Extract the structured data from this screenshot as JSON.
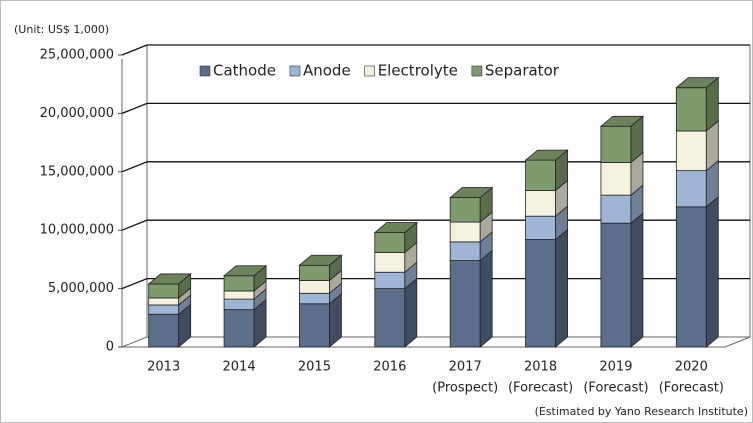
{
  "chart_data": {
    "type": "bar3d_stacked",
    "unit_note": "(Unit: US$ 1,000)",
    "source": "(Estimated by Yano Research Institute)",
    "categories": [
      "2013",
      "2014",
      "2015",
      "2016",
      "2017",
      "2018",
      "2019",
      "2020"
    ],
    "category_sublabels": [
      null,
      null,
      null,
      null,
      "(Prospect)",
      "(Forecast)",
      "(Forecast)",
      "(Forecast)"
    ],
    "series": [
      {
        "name": "Cathode",
        "color": "#5b6e8b",
        "values": [
          2800000,
          3200000,
          3700000,
          5000000,
          7400000,
          9200000,
          10600000,
          12000000
        ]
      },
      {
        "name": "Anode",
        "color": "#9fb5d6",
        "values": [
          800000,
          900000,
          900000,
          1400000,
          1600000,
          2000000,
          2400000,
          3100000
        ]
      },
      {
        "name": "Electrolyte",
        "color": "#f4f2de",
        "values": [
          600000,
          700000,
          1100000,
          1700000,
          1700000,
          2200000,
          2800000,
          3400000
        ]
      },
      {
        "name": "Separator",
        "color": "#7f9a6c",
        "values": [
          1200000,
          1300000,
          1300000,
          1700000,
          2100000,
          2600000,
          3100000,
          3700000
        ]
      }
    ],
    "ylim": [
      0,
      25000000
    ],
    "yticks": [
      0,
      {
        "value": 5000000,
        "label": "5,000,000"
      },
      {
        "value": 10000000,
        "label": "10,000,000"
      },
      {
        "value": 15000000,
        "label": "15,000,000"
      },
      {
        "value": 20000000,
        "label": "20,000,000"
      },
      {
        "value": 25000000,
        "label": "25,000,000"
      }
    ],
    "grid": true,
    "legend": "top"
  }
}
